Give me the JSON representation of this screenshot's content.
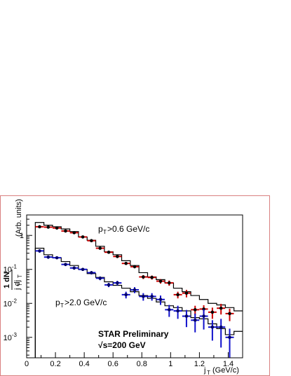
{
  "chart_data": {
    "type": "scatter",
    "title": "",
    "xlabel": "j_T (GeV/c)",
    "ylabel": "(1/j_T) dN/dj_T  (Arb. units)",
    "xlim": [
      0,
      1.5
    ],
    "ylim": [
      0.00025,
      4
    ],
    "yscale": "log",
    "x_ticks": [
      "0",
      "0.2",
      "0.4",
      "0.6",
      "0.8",
      "1",
      "1.2",
      "1.4"
    ],
    "y_ticks": [
      "10^-3",
      "10^-2",
      "10^-1",
      "1"
    ],
    "annotations": {
      "label_high": "p_T>0.6 GeV/c",
      "label_low": "p_T>2.0 GeV/c",
      "preliminary": "STAR Preliminary",
      "energy": "√s=200 GeV"
    },
    "series": [
      {
        "color": "#cc0000",
        "marker_color": "#000000",
        "x": [
          0.09,
          0.15,
          0.21,
          0.27,
          0.33,
          0.39,
          0.45,
          0.51,
          0.57,
          0.63,
          0.69,
          0.75,
          0.81,
          0.87,
          0.93,
          0.99,
          1.05,
          1.11,
          1.17,
          1.23,
          1.29,
          1.35,
          1.41
        ],
        "y": [
          1.8,
          1.75,
          1.65,
          1.35,
          1.2,
          0.9,
          0.7,
          0.42,
          0.32,
          0.24,
          0.15,
          0.12,
          0.06,
          0.058,
          0.045,
          0.04,
          0.018,
          0.02,
          0.0065,
          0.0068,
          0.0055,
          0.0072,
          0.005
        ],
        "err": [
          0.15,
          0.15,
          0.14,
          0.12,
          0.1,
          0.08,
          0.07,
          0.04,
          0.03,
          0.025,
          0.015,
          0.012,
          0.008,
          0.008,
          0.007,
          0.007,
          0.004,
          0.005,
          0.002,
          0.002,
          0.002,
          0.0025,
          0.002
        ]
      },
      {
        "color": "#1010cc",
        "marker_color": "#000066",
        "x": [
          0.09,
          0.15,
          0.21,
          0.27,
          0.33,
          0.39,
          0.45,
          0.51,
          0.57,
          0.63,
          0.69,
          0.75,
          0.81,
          0.87,
          0.93,
          0.99,
          1.05,
          1.11,
          1.17,
          1.23,
          1.29,
          1.35,
          1.41
        ],
        "y": [
          0.35,
          0.23,
          0.22,
          0.14,
          0.11,
          0.1,
          0.08,
          0.055,
          0.035,
          0.04,
          0.018,
          0.025,
          0.016,
          0.016,
          0.013,
          0.0065,
          0.006,
          0.0042,
          0.0032,
          0.0042,
          0.002,
          0.002,
          0.001
        ],
        "err": [
          0.04,
          0.025,
          0.02,
          0.015,
          0.012,
          0.01,
          0.009,
          0.007,
          0.005,
          0.006,
          0.004,
          0.005,
          0.004,
          0.004,
          0.004,
          0.0025,
          0.0025,
          0.0022,
          0.0018,
          0.0025,
          0.0012,
          0.0015,
          0.0008
        ]
      }
    ],
    "histograms": [
      {
        "edges": [
          0.06,
          0.12,
          0.18,
          0.24,
          0.3,
          0.36,
          0.42,
          0.48,
          0.54,
          0.6,
          0.66,
          0.72,
          0.78,
          0.84,
          0.9,
          0.96,
          1.02,
          1.08,
          1.14,
          1.2,
          1.26,
          1.32,
          1.38,
          1.44,
          1.5
        ],
        "values": [
          2.4,
          2.0,
          1.8,
          1.55,
          1.3,
          0.9,
          0.72,
          0.48,
          0.33,
          0.27,
          0.18,
          0.13,
          0.08,
          0.06,
          0.05,
          0.04,
          0.028,
          0.022,
          0.017,
          0.013,
          0.01,
          0.009,
          0.0075,
          0.006
        ]
      },
      {
        "edges": [
          0.06,
          0.12,
          0.18,
          0.24,
          0.3,
          0.36,
          0.42,
          0.48,
          0.54,
          0.6,
          0.66,
          0.72,
          0.78,
          0.84,
          0.9,
          0.96,
          1.02,
          1.08,
          1.14,
          1.2,
          1.26,
          1.32,
          1.38,
          1.44,
          1.5
        ],
        "values": [
          0.42,
          0.27,
          0.22,
          0.17,
          0.13,
          0.1,
          0.075,
          0.058,
          0.043,
          0.034,
          0.028,
          0.022,
          0.017,
          0.014,
          0.011,
          0.0085,
          0.0075,
          0.006,
          0.0038,
          0.0035,
          0.0025,
          0.0018,
          0.0012,
          0.0015
        ]
      }
    ],
    "grid": false,
    "legend": "none"
  }
}
